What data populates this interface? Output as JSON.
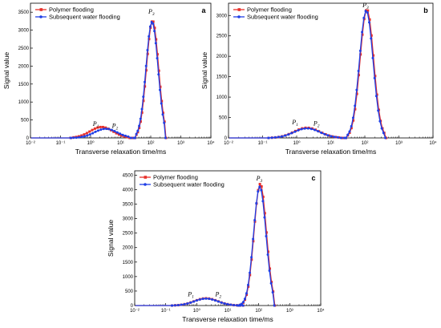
{
  "colors": {
    "polymer": "#e8302a",
    "water": "#1f3fe6",
    "axis": "#000000"
  },
  "chart_data": [
    {
      "type": "line",
      "panel_label": "a",
      "xlabel": "Transverse relaxation time/ms",
      "ylabel": "Signal value",
      "xscale": "log",
      "xlim": [
        0.01,
        10000
      ],
      "ylim": [
        0,
        3750
      ],
      "x_ticks": [
        "10⁻²",
        "10⁻¹",
        "10⁰",
        "10¹",
        "10²",
        "10³",
        "10⁴"
      ],
      "y_ticks": [
        "0",
        "500",
        "1000",
        "1500",
        "2000",
        "2500",
        "3000",
        "3500"
      ],
      "y_tick_values": [
        0,
        500,
        1000,
        1500,
        2000,
        2500,
        3000,
        3500
      ],
      "legend": [
        "Polymer flooding",
        "Subsequent water flooding"
      ],
      "legend_position": "top-left",
      "peaks": [
        {
          "label": "P",
          "sub": "1",
          "x": 1.5,
          "y": 330
        },
        {
          "label": "P",
          "sub": "2",
          "x": 6.5,
          "y": 280
        },
        {
          "label": "P",
          "sub": "3",
          "x": 105,
          "y": 3460
        }
      ],
      "series": [
        {
          "name": "Polymer flooding",
          "small": {
            "x_start": 0.22,
            "x_end": 20,
            "center": 2.3,
            "amp": 305
          },
          "big": {
            "x_start": 30,
            "x_end": 320,
            "center": 115,
            "amp": 3260
          }
        },
        {
          "name": "Subsequent water flooding",
          "small": {
            "x_start": 0.22,
            "x_end": 22,
            "center": 3.2,
            "amp": 255
          },
          "big": {
            "x_start": 30,
            "x_end": 310,
            "center": 110,
            "amp": 3230
          }
        }
      ]
    },
    {
      "type": "line",
      "panel_label": "b",
      "xlabel": "Transverse relaxation time/ms",
      "ylabel": "Signal value",
      "xscale": "log",
      "xlim": [
        0.01,
        10000
      ],
      "ylim": [
        0,
        3300
      ],
      "x_ticks": [
        "10⁻²",
        "10⁻¹",
        "10⁰",
        "10¹",
        "10²",
        "10³",
        "10⁴"
      ],
      "y_ticks": [
        "0",
        "500",
        "1000",
        "1500",
        "2000",
        "2500",
        "3000"
      ],
      "y_tick_values": [
        0,
        500,
        1000,
        1500,
        2000,
        2500,
        3000
      ],
      "legend": [
        "Polymer flooding",
        "Subsequent water flooding"
      ],
      "legend_position": "top-left",
      "peaks": [
        {
          "label": "P",
          "sub": "1",
          "x": 0.9,
          "y": 330
        },
        {
          "label": "P",
          "sub": "2",
          "x": 3.8,
          "y": 300
        },
        {
          "label": "P",
          "sub": "3",
          "x": 105,
          "y": 3200
        }
      ],
      "series": [
        {
          "name": "Polymer flooding",
          "small": {
            "x_start": 0.15,
            "x_end": 22,
            "center": 2.0,
            "amp": 250
          },
          "big": {
            "x_start": 28,
            "x_end": 420,
            "center": 115,
            "amp": 3150
          }
        },
        {
          "name": "Subsequent water flooding",
          "small": {
            "x_start": 0.15,
            "x_end": 20,
            "center": 2.0,
            "amp": 235
          },
          "big": {
            "x_start": 28,
            "x_end": 400,
            "center": 110,
            "amp": 3120
          }
        }
      ]
    },
    {
      "type": "line",
      "panel_label": "c",
      "xlabel": "Transverse relaxation time/ms",
      "ylabel": "Signal value",
      "xscale": "log",
      "xlim": [
        0.01,
        10000
      ],
      "ylim": [
        0,
        4650
      ],
      "x_ticks": [
        "10⁻²",
        "10⁻¹",
        "10⁰",
        "10¹",
        "10²",
        "10³",
        "10⁴"
      ],
      "y_ticks": [
        "0",
        "500",
        "1000",
        "1500",
        "2000",
        "2500",
        "3000",
        "3500",
        "4000",
        "4500"
      ],
      "y_tick_values": [
        0,
        500,
        1000,
        1500,
        2000,
        2500,
        3000,
        3500,
        4000,
        4500
      ],
      "legend": [
        "Polymer flooding",
        "Subsequent water flooding"
      ],
      "legend_position": "top-left",
      "peaks": [
        {
          "label": "P",
          "sub": "1",
          "x": 0.65,
          "y": 320
        },
        {
          "label": "P",
          "sub": "2",
          "x": 5.0,
          "y": 320
        },
        {
          "label": "P",
          "sub": "3",
          "x": 105,
          "y": 4320
        }
      ],
      "series": [
        {
          "name": "Polymer flooding",
          "small": {
            "x_start": 0.16,
            "x_end": 25,
            "center": 2.0,
            "amp": 250
          },
          "big": {
            "x_start": 22,
            "x_end": 330,
            "center": 112,
            "amp": 4200
          }
        },
        {
          "name": "Subsequent water flooding",
          "small": {
            "x_start": 0.16,
            "x_end": 25,
            "center": 2.0,
            "amp": 240
          },
          "big": {
            "x_start": 22,
            "x_end": 320,
            "center": 108,
            "amp": 4100
          }
        }
      ]
    }
  ]
}
